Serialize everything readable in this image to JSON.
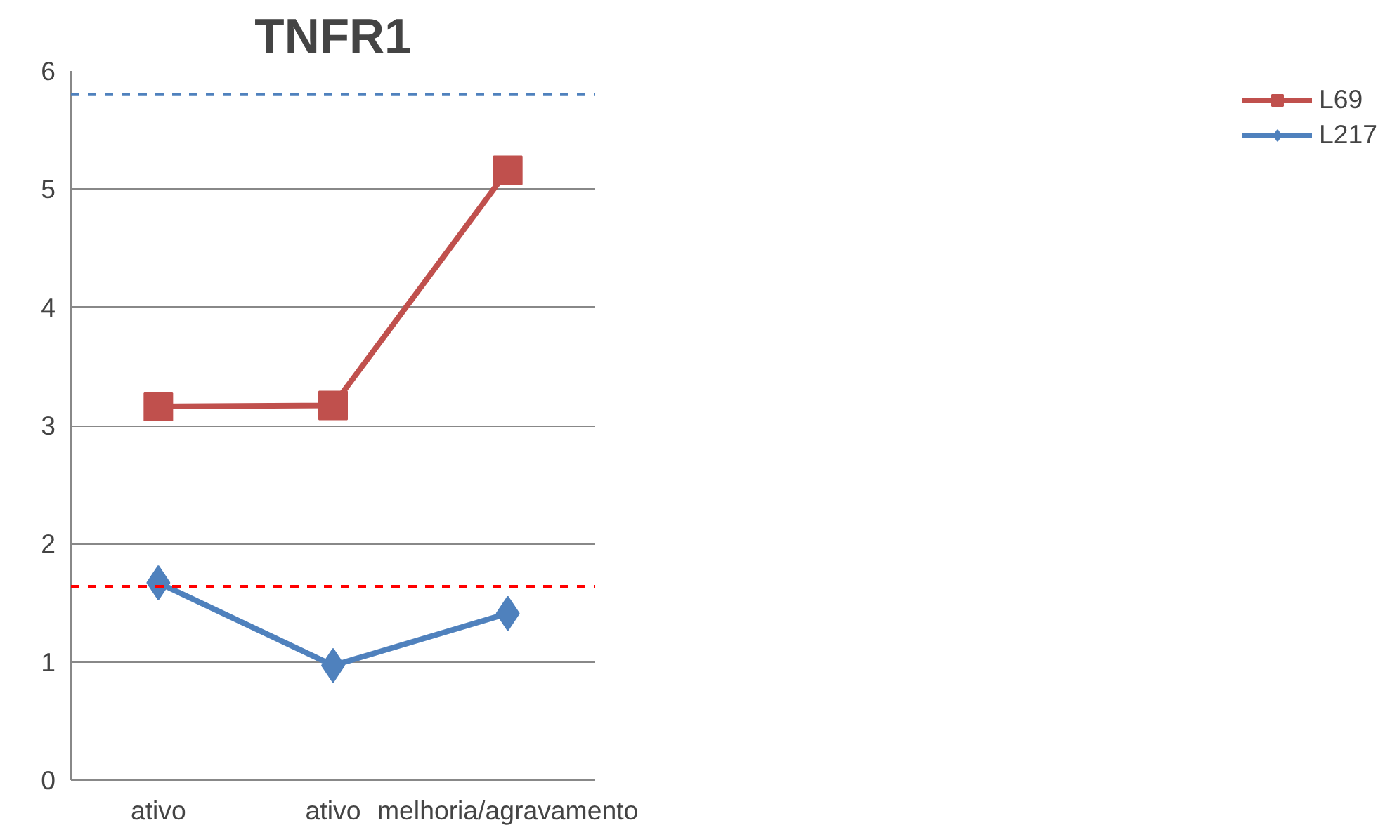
{
  "chart_data": {
    "type": "line",
    "title": "TNFR1",
    "categories": [
      "ativo",
      "ativo",
      "melhoria/agravamento"
    ],
    "series": [
      {
        "name": "L69",
        "color": "#c0504d",
        "marker": "square",
        "values": [
          3.16,
          3.17,
          5.16
        ]
      },
      {
        "name": "L217",
        "color": "#4f81bd",
        "marker": "diamond",
        "values": [
          1.67,
          0.97,
          1.41
        ]
      }
    ],
    "ylim": [
      0,
      6
    ],
    "yticks": [
      0,
      1,
      2,
      3,
      4,
      5,
      6
    ],
    "grid": "y",
    "legend": "right",
    "line_style": "solid",
    "ref_lines": [
      {
        "axis": "y",
        "value": 5.8,
        "color": "#4f81bd",
        "line_style": "dashed"
      },
      {
        "axis": "y",
        "value": 1.64,
        "color": "#ff0000",
        "line_style": "dashed"
      }
    ]
  }
}
